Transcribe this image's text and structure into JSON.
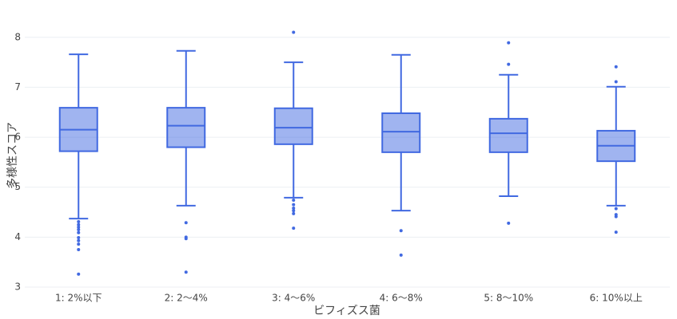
{
  "chart_data": {
    "type": "box",
    "x_label": "ビフィズス菌",
    "y_label": "多様性スコア",
    "categories": [
      "1: 2%以下",
      "2: 2〜4%",
      "3: 4〜6%",
      "4: 6〜8%",
      "5: 8〜10%",
      "6: 10%以上"
    ],
    "boxes": [
      {
        "low": 4.37,
        "q1": 5.72,
        "median": 6.15,
        "q3": 6.59,
        "high": 7.66,
        "outliers": [
          4.31,
          4.25,
          4.2,
          4.15,
          4.09,
          3.99,
          3.93,
          3.86,
          3.75,
          3.26
        ]
      },
      {
        "low": 4.63,
        "q1": 5.8,
        "median": 6.23,
        "q3": 6.59,
        "high": 7.73,
        "outliers": [
          4.29,
          4.0,
          3.97,
          3.3
        ]
      },
      {
        "low": 4.79,
        "q1": 5.86,
        "median": 6.19,
        "q3": 6.58,
        "high": 7.5,
        "outliers": [
          8.1,
          4.74,
          4.65,
          4.58,
          4.53,
          4.47,
          4.18
        ]
      },
      {
        "low": 4.53,
        "q1": 5.7,
        "median": 6.11,
        "q3": 6.48,
        "high": 7.65,
        "outliers": [
          4.13,
          3.64
        ]
      },
      {
        "low": 4.82,
        "q1": 5.7,
        "median": 6.08,
        "q3": 6.37,
        "high": 7.25,
        "outliers": [
          7.89,
          7.46,
          4.28
        ]
      },
      {
        "low": 4.63,
        "q1": 5.52,
        "median": 5.83,
        "q3": 6.13,
        "high": 7.01,
        "outliers": [
          7.41,
          7.11,
          4.57,
          4.45,
          4.41,
          4.1
        ]
      }
    ],
    "color": "#4169e1",
    "ylim": [
      3,
      8.3
    ],
    "yticks": [
      3,
      4,
      5,
      6,
      7,
      8
    ],
    "grid": true
  }
}
